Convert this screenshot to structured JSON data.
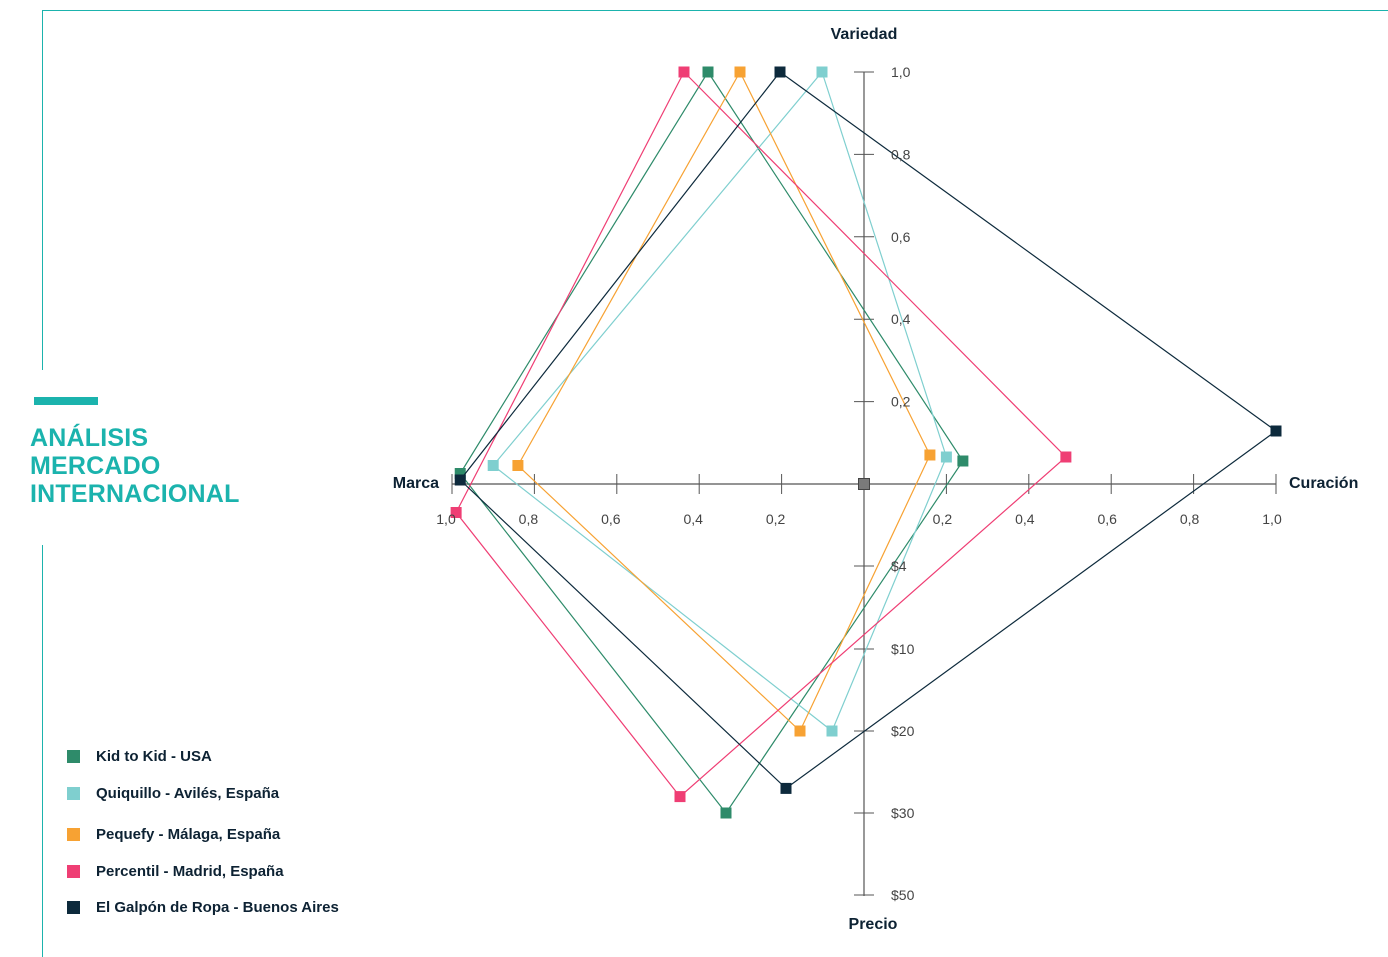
{
  "side_panel": {
    "title": "ANÁLISIS\nMERCADO\nINTERNACIONAL",
    "accent_color": "#1bb3ad"
  },
  "chart_data": {
    "type": "radar",
    "axes": [
      {
        "name": "Variedad",
        "direction": "up",
        "ticks": [
          "1,0",
          "0,8",
          "0,6",
          "0,4",
          "0,2"
        ],
        "range": [
          0,
          1
        ]
      },
      {
        "name": "Curación",
        "direction": "right",
        "ticks": [
          "0,2",
          "0,4",
          "0,6",
          "0,8",
          "1,0"
        ],
        "range": [
          0,
          1
        ]
      },
      {
        "name": "Precio",
        "direction": "down",
        "ticks": [
          "$4",
          "$10",
          "$20",
          "$30",
          "$50"
        ],
        "tick_values": [
          4,
          10,
          20,
          30,
          50
        ]
      },
      {
        "name": "Marca",
        "direction": "left",
        "ticks": [
          "1,0",
          "0,8",
          "0,6",
          "0,4",
          "0,2"
        ],
        "range": [
          0,
          1
        ]
      }
    ],
    "series": [
      {
        "name": "Kid to Kid - USA",
        "color": "#2e8b6a",
        "values": {
          "Variedad": 1.0,
          "Curación": 0.24,
          "Precio": 30,
          "Marca": 0.98
        }
      },
      {
        "name": "Quiquillo - Avilés, España",
        "color": "#7fcfcf",
        "values": {
          "Variedad": 1.0,
          "Curación": 0.2,
          "Precio": 20,
          "Marca": 0.9
        }
      },
      {
        "name": "Pequefy - Málaga, España",
        "color": "#f7a233",
        "values": {
          "Variedad": 1.0,
          "Curación": 0.16,
          "Precio": 20,
          "Marca": 0.84
        }
      },
      {
        "name": "Percentil - Madrid, España",
        "color": "#ef3e74",
        "values": {
          "Variedad": 1.0,
          "Curación": 0.49,
          "Precio": 28,
          "Marca": 0.99
        }
      },
      {
        "name": "El Galpón de Ropa - Buenos Aires",
        "color": "#0d2a3c",
        "values": {
          "Variedad": 1.0,
          "Curación": 1.0,
          "Precio": 27,
          "Marca": 0.98
        }
      }
    ],
    "center_marker_color": "#7a7a7a",
    "axis_color": "#555555",
    "legend_position": "bottom-left"
  }
}
